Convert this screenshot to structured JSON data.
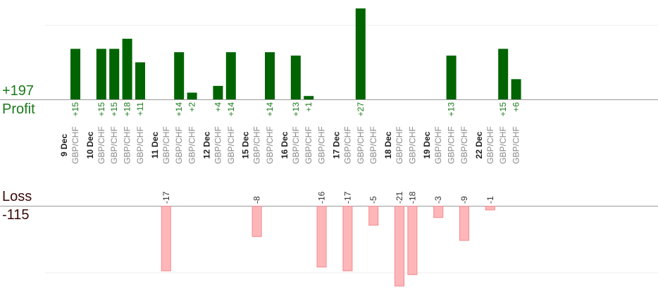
{
  "summary": {
    "profit_total": "+197",
    "profit_label": "Profit",
    "loss_label": "Loss",
    "loss_total": "-115"
  },
  "colors": {
    "profit_bar": "#006400",
    "profit_text": "#1a7a1a",
    "loss_bar_fill": "#ffb6b9",
    "loss_bar_stroke": "#f08a8f",
    "pair_text": "#888888",
    "date_text": "#222222"
  },
  "chart_data": {
    "type": "bar",
    "profit_ylim": [
      0,
      32
    ],
    "loss_ylim": [
      0,
      26
    ],
    "grid": true,
    "groups": [
      {
        "date": "9 Dec",
        "trades": [
          {
            "pair": "GBP/CHF",
            "value": 15
          }
        ]
      },
      {
        "date": "10 Dec",
        "trades": [
          {
            "pair": "GBP/CHF",
            "value": 15
          },
          {
            "pair": "GBP/CHF",
            "value": 15
          },
          {
            "pair": "GBP/CHF",
            "value": 18
          },
          {
            "pair": "GBP/CHF",
            "value": 11
          }
        ]
      },
      {
        "date": "11 Dec",
        "trades": [
          {
            "pair": "GBP/CHF",
            "value": -17
          },
          {
            "pair": "GBP/CHF",
            "value": 14
          },
          {
            "pair": "GBP/CHF",
            "value": 2
          }
        ]
      },
      {
        "date": "12 Dec",
        "trades": [
          {
            "pair": "GBP/CHF",
            "value": 4
          },
          {
            "pair": "GBP/CHF",
            "value": 14
          }
        ]
      },
      {
        "date": "15 Dec",
        "trades": [
          {
            "pair": "GBP/CHF",
            "value": -8
          },
          {
            "pair": "GBP/CHF",
            "value": 14
          }
        ]
      },
      {
        "date": "16 Dec",
        "trades": [
          {
            "pair": "GBP/CHF",
            "value": 13
          },
          {
            "pair": "GBP/CHF",
            "value": 1
          },
          {
            "pair": "GBP/CHF",
            "value": -16
          }
        ]
      },
      {
        "date": "17 Dec",
        "trades": [
          {
            "pair": "GBP/CHF",
            "value": -17
          },
          {
            "pair": "GBP/CHF",
            "value": 27
          },
          {
            "pair": "GBP/CHF",
            "value": -5
          }
        ]
      },
      {
        "date": "18 Dec",
        "trades": [
          {
            "pair": "GBP/CHF",
            "value": -21
          },
          {
            "pair": "GBP/CHF",
            "value": -18
          }
        ]
      },
      {
        "date": "19 Dec",
        "trades": [
          {
            "pair": "GBP/CHF",
            "value": -3
          },
          {
            "pair": "GBP/CHF",
            "value": 13
          },
          {
            "pair": "GBP/CHF",
            "value": -9
          }
        ]
      },
      {
        "date": "22 Dec",
        "trades": [
          {
            "pair": "GBP/CHF",
            "value": -1
          },
          {
            "pair": "GBP/CHF",
            "value": 15
          },
          {
            "pair": "GBP/CHF",
            "value": 6
          }
        ]
      }
    ]
  }
}
